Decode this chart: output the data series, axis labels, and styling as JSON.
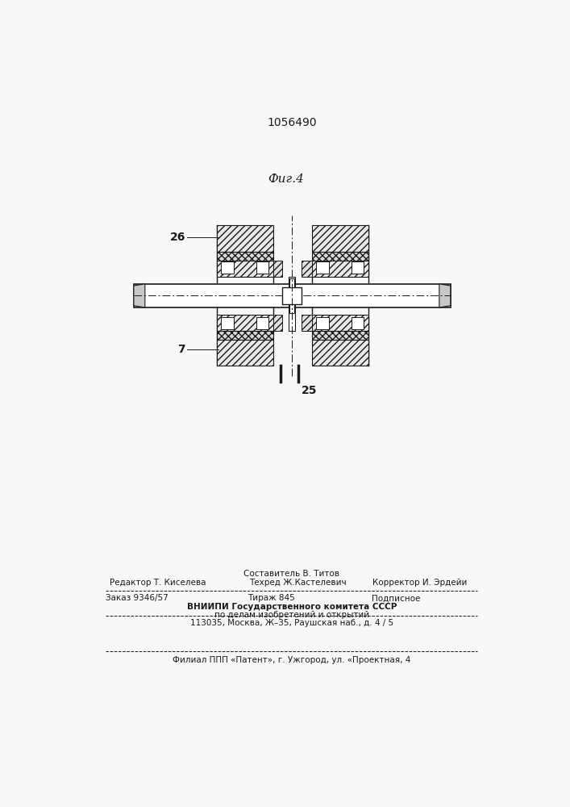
{
  "title": "1056490",
  "fig_label": "Фиг.4",
  "label_26": "26",
  "label_7": "7",
  "label_25": "25",
  "bg_color": "#f8f8f6",
  "line_color": "#1a1a1a",
  "footer_line0": "Составитель В. Титов",
  "footer_line1_left": "Редактор Т. Киселева",
  "footer_line1_center": "Техред Ж.Кастелевич",
  "footer_line1_right": "Корректор И. Эрдейи",
  "footer_line2_left": "Заказ 9346/57",
  "footer_line2_center": "Тираж 845",
  "footer_line2_right": "Подписное",
  "footer_line3": "ВНИИПИ Государственного комитета СССР",
  "footer_line4": "по делам изобретений и открытий",
  "footer_line5": "113035, Москва, Ж–35, Раушская наб., д. 4 / 5",
  "footer_line6": "Филиал ППП «Патент», г. Ужгород, ул. «Проектная, 4"
}
